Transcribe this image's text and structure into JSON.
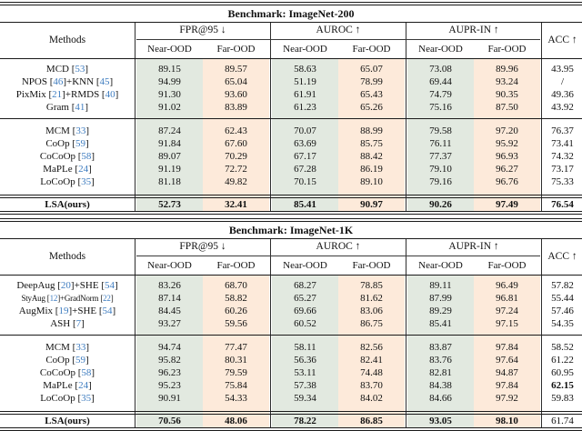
{
  "colors": {
    "near_ood_bg": "#e2e9e0",
    "far_ood_bg": "#fdeada",
    "citation": "#3f7dc0",
    "rule": "#1a1a1a"
  },
  "tables": [
    {
      "title": "Benchmark: ImageNet-200",
      "header": {
        "methods": "Methods",
        "acc": "ACC ↑",
        "groups": [
          {
            "label": "FPR@95 ↓",
            "sub": [
              "Near-OOD",
              "Far-OOD"
            ]
          },
          {
            "label": "AUROC ↑",
            "sub": [
              "Near-OOD",
              "Far-OOD"
            ]
          },
          {
            "label": "AUPR-IN ↑",
            "sub": [
              "Near-OOD",
              "Far-OOD"
            ]
          }
        ]
      },
      "sections": [
        {
          "rows": [
            {
              "method": [
                [
                  "t",
                  "MCD ["
                ],
                [
                  "c",
                  "53"
                ],
                [
                  "t",
                  "]"
                ]
              ],
              "values": [
                "89.15",
                "89.57",
                "58.63",
                "65.07",
                "73.08",
                "89.96",
                "43.95"
              ],
              "bold_idx": []
            },
            {
              "method": [
                [
                  "t",
                  "NPOS ["
                ],
                [
                  "c",
                  "46"
                ],
                [
                  "t",
                  "]+KNN ["
                ],
                [
                  "c",
                  "45"
                ],
                [
                  "t",
                  "]"
                ]
              ],
              "values": [
                "94.99",
                "65.04",
                "51.19",
                "78.99",
                "69.44",
                "93.24",
                "/"
              ],
              "bold_idx": []
            },
            {
              "method": [
                [
                  "t",
                  "PixMix ["
                ],
                [
                  "c",
                  "21"
                ],
                [
                  "t",
                  "]+RMDS ["
                ],
                [
                  "c",
                  "40"
                ],
                [
                  "t",
                  "]"
                ]
              ],
              "values": [
                "91.30",
                "93.60",
                "61.91",
                "65.43",
                "74.79",
                "90.35",
                "49.36"
              ],
              "bold_idx": []
            },
            {
              "method": [
                [
                  "t",
                  "Gram ["
                ],
                [
                  "c",
                  "41"
                ],
                [
                  "t",
                  "]"
                ]
              ],
              "values": [
                "91.02",
                "83.89",
                "61.23",
                "65.26",
                "75.16",
                "87.50",
                "43.92"
              ],
              "bold_idx": []
            }
          ]
        },
        {
          "rows": [
            {
              "method": [
                [
                  "t",
                  "MCM ["
                ],
                [
                  "c",
                  "33"
                ],
                [
                  "t",
                  "]"
                ]
              ],
              "values": [
                "87.24",
                "62.43",
                "70.07",
                "88.99",
                "79.58",
                "97.20",
                "76.37"
              ],
              "bold_idx": []
            },
            {
              "method": [
                [
                  "t",
                  "CoOp ["
                ],
                [
                  "c",
                  "59"
                ],
                [
                  "t",
                  "]"
                ]
              ],
              "values": [
                "91.84",
                "67.60",
                "63.69",
                "85.75",
                "76.11",
                "95.92",
                "73.41"
              ],
              "bold_idx": []
            },
            {
              "method": [
                [
                  "t",
                  "CoCoOp ["
                ],
                [
                  "c",
                  "58"
                ],
                [
                  "t",
                  "]"
                ]
              ],
              "values": [
                "89.07",
                "70.29",
                "67.17",
                "88.42",
                "77.37",
                "96.93",
                "74.32"
              ],
              "bold_idx": []
            },
            {
              "method": [
                [
                  "t",
                  "MaPLe ["
                ],
                [
                  "c",
                  "24"
                ],
                [
                  "t",
                  "]"
                ]
              ],
              "values": [
                "91.19",
                "72.72",
                "67.28",
                "86.19",
                "79.10",
                "96.27",
                "73.17"
              ],
              "bold_idx": []
            },
            {
              "method": [
                [
                  "t",
                  "LoCoOp ["
                ],
                [
                  "c",
                  "35"
                ],
                [
                  "t",
                  "]"
                ]
              ],
              "values": [
                "81.18",
                "49.82",
                "70.15",
                "89.10",
                "79.16",
                "96.76",
                "75.33"
              ],
              "bold_idx": []
            }
          ]
        }
      ],
      "final": {
        "method": [
          [
            "t",
            "LSA(ours)"
          ]
        ],
        "method_bold": true,
        "values": [
          "52.73",
          "32.41",
          "85.41",
          "90.97",
          "90.26",
          "97.49",
          "76.54"
        ],
        "bold_idx": [
          0,
          1,
          2,
          3,
          4,
          5,
          6
        ]
      }
    },
    {
      "title": "Benchmark: ImageNet-1K",
      "header": {
        "methods": "Methods",
        "acc": "ACC ↑",
        "groups": [
          {
            "label": "FPR@95 ↓",
            "sub": [
              "Near-OOD",
              "Far-OOD"
            ]
          },
          {
            "label": "AUROC ↑",
            "sub": [
              "Near-OOD",
              "Far-OOD"
            ]
          },
          {
            "label": "AUPR-IN ↑",
            "sub": [
              "Near-OOD",
              "Far-OOD"
            ]
          }
        ]
      },
      "sections": [
        {
          "rows": [
            {
              "method": [
                [
                  "t",
                  "DeepAug ["
                ],
                [
                  "c",
                  "20"
                ],
                [
                  "t",
                  "]+SHE ["
                ],
                [
                  "c",
                  "54"
                ],
                [
                  "t",
                  "]"
                ]
              ],
              "values": [
                "83.26",
                "68.70",
                "68.27",
                "78.85",
                "89.11",
                "96.49",
                "57.82"
              ],
              "bold_idx": []
            },
            {
              "method": [
                [
                  "t",
                  "StyAug ["
                ],
                [
                  "c",
                  "12"
                ],
                [
                  "t",
                  "]+GradNorm ["
                ],
                [
                  "c",
                  "22"
                ],
                [
                  "t",
                  "]"
                ]
              ],
              "small": true,
              "values": [
                "87.14",
                "58.82",
                "65.27",
                "81.62",
                "87.99",
                "96.81",
                "55.44"
              ],
              "bold_idx": []
            },
            {
              "method": [
                [
                  "t",
                  "AugMix ["
                ],
                [
                  "c",
                  "19"
                ],
                [
                  "t",
                  "]+SHE ["
                ],
                [
                  "c",
                  "54"
                ],
                [
                  "t",
                  "]"
                ]
              ],
              "values": [
                "84.45",
                "60.26",
                "69.66",
                "83.06",
                "89.29",
                "97.24",
                "57.46"
              ],
              "bold_idx": []
            },
            {
              "method": [
                [
                  "t",
                  "ASH ["
                ],
                [
                  "c",
                  "7"
                ],
                [
                  "t",
                  "]"
                ]
              ],
              "values": [
                "93.27",
                "59.56",
                "60.52",
                "86.75",
                "85.41",
                "97.15",
                "54.35"
              ],
              "bold_idx": []
            }
          ]
        },
        {
          "rows": [
            {
              "method": [
                [
                  "t",
                  "MCM ["
                ],
                [
                  "c",
                  "33"
                ],
                [
                  "t",
                  "]"
                ]
              ],
              "values": [
                "94.74",
                "77.47",
                "58.11",
                "82.56",
                "83.87",
                "97.84",
                "58.52"
              ],
              "bold_idx": []
            },
            {
              "method": [
                [
                  "t",
                  "CoOp ["
                ],
                [
                  "c",
                  "59"
                ],
                [
                  "t",
                  "]"
                ]
              ],
              "values": [
                "95.82",
                "80.31",
                "56.36",
                "82.41",
                "83.76",
                "97.64",
                "61.22"
              ],
              "bold_idx": []
            },
            {
              "method": [
                [
                  "t",
                  "CoCoOp ["
                ],
                [
                  "c",
                  "58"
                ],
                [
                  "t",
                  "]"
                ]
              ],
              "values": [
                "96.23",
                "79.59",
                "53.11",
                "74.48",
                "82.81",
                "94.87",
                "60.95"
              ],
              "bold_idx": []
            },
            {
              "method": [
                [
                  "t",
                  "MaPLe ["
                ],
                [
                  "c",
                  "24"
                ],
                [
                  "t",
                  "]"
                ]
              ],
              "values": [
                "95.23",
                "75.84",
                "57.38",
                "83.70",
                "84.38",
                "97.84",
                "62.15"
              ],
              "bold_idx": [
                6
              ]
            },
            {
              "method": [
                [
                  "t",
                  "LoCoOp ["
                ],
                [
                  "c",
                  "35"
                ],
                [
                  "t",
                  "]"
                ]
              ],
              "values": [
                "90.91",
                "54.33",
                "59.34",
                "84.02",
                "84.66",
                "97.92",
                "59.83"
              ],
              "bold_idx": []
            }
          ]
        }
      ],
      "final": {
        "method": [
          [
            "t",
            "LSA(ours)"
          ]
        ],
        "method_bold": true,
        "values": [
          "70.56",
          "48.06",
          "78.22",
          "86.85",
          "93.05",
          "98.10",
          "61.74"
        ],
        "bold_idx": [
          0,
          1,
          2,
          3,
          4,
          5
        ]
      }
    }
  ]
}
